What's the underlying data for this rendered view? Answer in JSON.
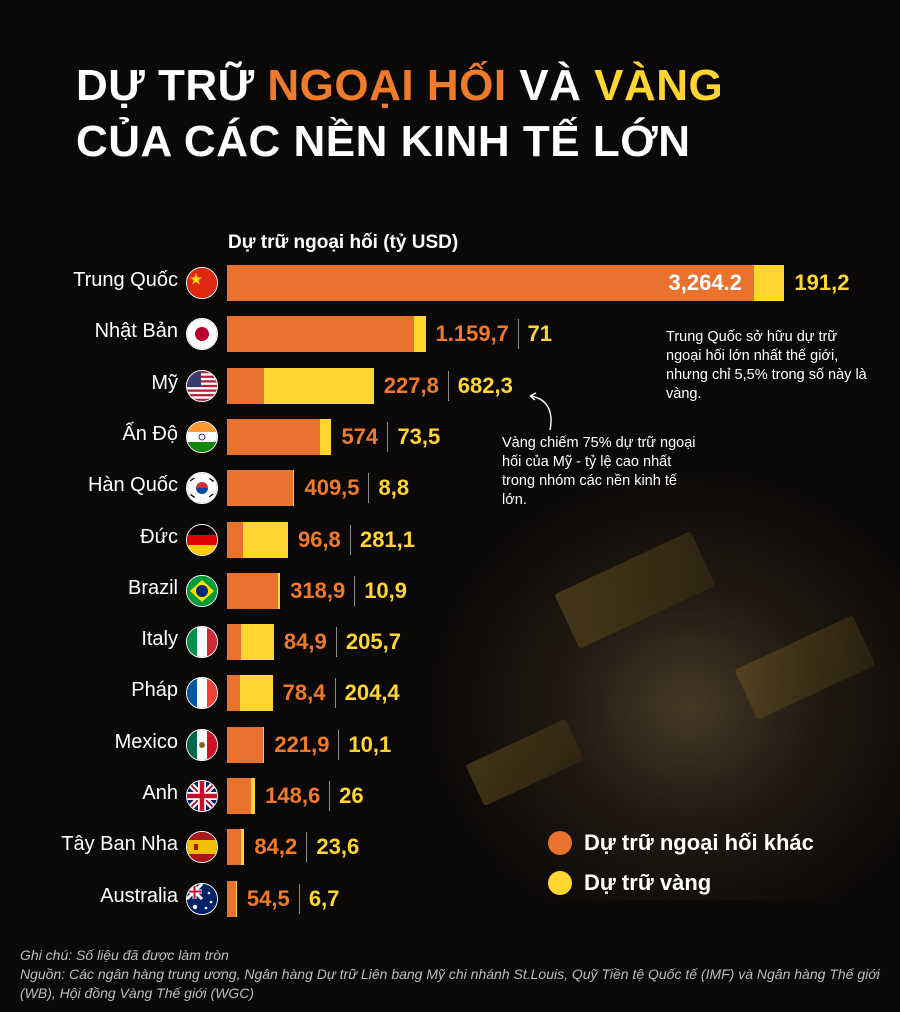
{
  "title": {
    "line1_a": "DỰ TRỮ ",
    "line1_b": "NGOẠI HỐI",
    "line1_c": " VÀ ",
    "line1_d": "VÀNG",
    "line2": "CỦA CÁC NỀN KINH TẾ LỚN"
  },
  "colors": {
    "forex": "#e8722e",
    "gold": "#ffd630",
    "background": "#0b0908"
  },
  "chart_data": {
    "type": "bar",
    "orientation": "horizontal",
    "stacked": true,
    "title": "DỰ TRỮ NGOẠI HỐI VÀ VÀNG CỦA CÁC NỀN KINH TẾ LỚN",
    "xlabel": "Dự trữ ngoại hối (tỷ USD)",
    "categories": [
      "Trung Quốc",
      "Nhật Bản",
      "Mỹ",
      "Ấn Độ",
      "Hàn Quốc",
      "Đức",
      "Brazil",
      "Italy",
      "Pháp",
      "Mexico",
      "Anh",
      "Tây Ban Nha",
      "Australia"
    ],
    "flags": [
      "china",
      "japan",
      "usa",
      "india",
      "south-korea",
      "germany",
      "brazil",
      "italy",
      "france",
      "mexico",
      "uk",
      "spain",
      "australia"
    ],
    "series": [
      {
        "name": "Dự trữ ngoại hối khác",
        "values": [
          3264.2,
          1159.7,
          227.8,
          574,
          409.5,
          96.8,
          318.9,
          84.9,
          78.4,
          221.9,
          148.6,
          84.2,
          54.5
        ],
        "labels": [
          "3,264.2",
          "1.159,7",
          "227,8",
          "574",
          "409,5",
          "96,8",
          "318,9",
          "84,9",
          "78,4",
          "221,9",
          "148,6",
          "84,2",
          "54,5"
        ]
      },
      {
        "name": "Dự trữ vàng",
        "values": [
          191.2,
          71,
          682.3,
          73.5,
          8.8,
          281.1,
          10.9,
          205.7,
          204.4,
          10.1,
          26,
          23.6,
          6.7
        ],
        "labels": [
          "191,2",
          "71",
          "682,3",
          "73,5",
          "8,8",
          "281,1",
          "10,9",
          "205,7",
          "204,4",
          "10,1",
          "26",
          "23,6",
          "6,7"
        ]
      }
    ],
    "legend_position": "bottom-right",
    "grid": false
  },
  "legend": {
    "forex_label": "Dự trữ ngoại hối khác",
    "gold_label": "Dự trữ vàng"
  },
  "annotations": {
    "china": "Trung Quốc sở hữu dự trữ ngoại hối lớn nhất thế giới, nhưng chỉ 5,5% trong số này là vàng.",
    "usa": "Vàng chiếm 75% dự trữ ngoại hối của Mỹ - tỷ lệ cao nhất trong nhóm các nền kinh tế lớn."
  },
  "footer": {
    "note": "Ghi chú: Số liệu đã được làm tròn",
    "source": "Nguồn: Các ngân hàng trung ương, Ngân hàng Dự trữ Liên bang Mỹ chi nhánh St.Louis, Quỹ Tiền tệ Quốc tế (IMF) và Ngân hàng Thế giới (WB), Hội đồng Vàng Thế giới (WGC)"
  }
}
